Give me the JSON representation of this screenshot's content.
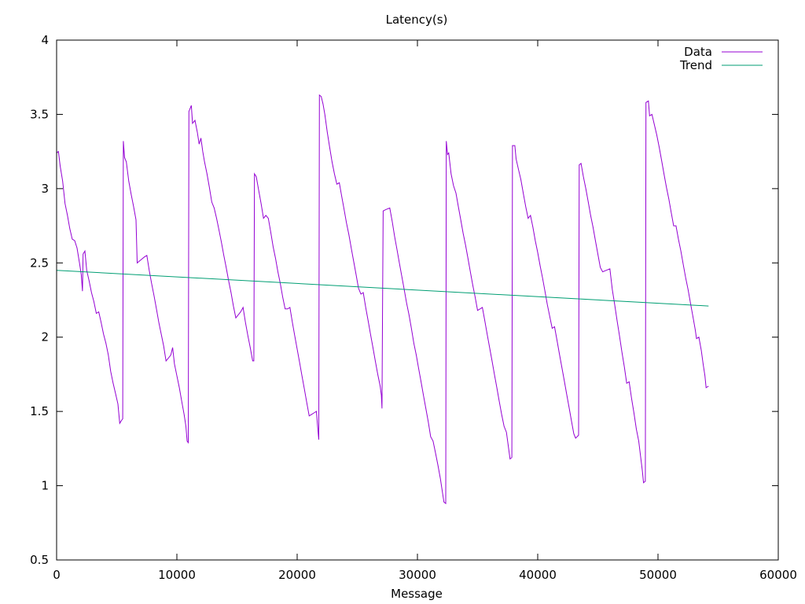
{
  "chart_data": {
    "type": "line",
    "title": "Latency(s)",
    "xlabel": "Message",
    "ylabel": "",
    "xlim": [
      0,
      60000
    ],
    "ylim": [
      0.5,
      4
    ],
    "xticks": [
      0,
      10000,
      20000,
      30000,
      40000,
      50000,
      60000
    ],
    "xtick_labels": [
      "0",
      "10000",
      "20000",
      "30000",
      "40000",
      "50000",
      "60000"
    ],
    "yticks": [
      0.5,
      1,
      1.5,
      2,
      2.5,
      3,
      3.5,
      4
    ],
    "ytick_labels": [
      "0.5",
      "1",
      "1.5",
      "2",
      "2.5",
      "3",
      "3.5",
      "4"
    ],
    "grid": false,
    "legend_position": "top-right",
    "series": [
      {
        "name": "Data",
        "color": "#9400d3",
        "points": [
          [
            0,
            3.24
          ],
          [
            150,
            3.25
          ],
          [
            300,
            3.15
          ],
          [
            500,
            3.05
          ],
          [
            700,
            2.9
          ],
          [
            900,
            2.82
          ],
          [
            1100,
            2.73
          ],
          [
            1300,
            2.66
          ],
          [
            1500,
            2.65
          ],
          [
            1700,
            2.6
          ],
          [
            1900,
            2.5
          ],
          [
            2050,
            2.42
          ],
          [
            2150,
            2.31
          ],
          [
            2200,
            2.56
          ],
          [
            2350,
            2.58
          ],
          [
            2500,
            2.45
          ],
          [
            2700,
            2.38
          ],
          [
            2900,
            2.3
          ],
          [
            3100,
            2.24
          ],
          [
            3300,
            2.16
          ],
          [
            3500,
            2.17
          ],
          [
            3700,
            2.1
          ],
          [
            3900,
            2.02
          ],
          [
            4100,
            1.96
          ],
          [
            4300,
            1.88
          ],
          [
            4500,
            1.77
          ],
          [
            4700,
            1.69
          ],
          [
            4900,
            1.62
          ],
          [
            5100,
            1.55
          ],
          [
            5250,
            1.42
          ],
          [
            5400,
            1.44
          ],
          [
            5500,
            1.45
          ],
          [
            5550,
            3.32
          ],
          [
            5650,
            3.21
          ],
          [
            5800,
            3.18
          ],
          [
            6000,
            3.05
          ],
          [
            6200,
            2.96
          ],
          [
            6400,
            2.88
          ],
          [
            6600,
            2.79
          ],
          [
            6700,
            2.5
          ],
          [
            7000,
            2.52
          ],
          [
            7300,
            2.54
          ],
          [
            7500,
            2.55
          ],
          [
            7700,
            2.45
          ],
          [
            7900,
            2.36
          ],
          [
            8100,
            2.28
          ],
          [
            8300,
            2.19
          ],
          [
            8500,
            2.1
          ],
          [
            8700,
            2.02
          ],
          [
            8900,
            1.94
          ],
          [
            9100,
            1.84
          ],
          [
            9300,
            1.86
          ],
          [
            9500,
            1.88
          ],
          [
            9650,
            1.93
          ],
          [
            9800,
            1.82
          ],
          [
            10000,
            1.74
          ],
          [
            10200,
            1.66
          ],
          [
            10400,
            1.57
          ],
          [
            10600,
            1.48
          ],
          [
            10750,
            1.4
          ],
          [
            10850,
            1.3
          ],
          [
            10950,
            1.29
          ],
          [
            11000,
            3.52
          ],
          [
            11200,
            3.56
          ],
          [
            11300,
            3.44
          ],
          [
            11500,
            3.46
          ],
          [
            11700,
            3.38
          ],
          [
            11850,
            3.3
          ],
          [
            12000,
            3.34
          ],
          [
            12150,
            3.25
          ],
          [
            12300,
            3.18
          ],
          [
            12500,
            3.1
          ],
          [
            12700,
            3.01
          ],
          [
            12900,
            2.91
          ],
          [
            13100,
            2.87
          ],
          [
            13300,
            2.8
          ],
          [
            13500,
            2.72
          ],
          [
            13700,
            2.64
          ],
          [
            13900,
            2.55
          ],
          [
            14100,
            2.47
          ],
          [
            14300,
            2.38
          ],
          [
            14500,
            2.3
          ],
          [
            14700,
            2.21
          ],
          [
            14900,
            2.13
          ],
          [
            15100,
            2.15
          ],
          [
            15300,
            2.17
          ],
          [
            15500,
            2.2
          ],
          [
            15700,
            2.1
          ],
          [
            15900,
            2.01
          ],
          [
            16100,
            1.93
          ],
          [
            16300,
            1.84
          ],
          [
            16400,
            1.84
          ],
          [
            16450,
            3.1
          ],
          [
            16600,
            3.08
          ],
          [
            16800,
            2.99
          ],
          [
            17000,
            2.9
          ],
          [
            17200,
            2.8
          ],
          [
            17400,
            2.82
          ],
          [
            17600,
            2.8
          ],
          [
            17800,
            2.71
          ],
          [
            18000,
            2.61
          ],
          [
            18200,
            2.53
          ],
          [
            18400,
            2.44
          ],
          [
            18600,
            2.36
          ],
          [
            18800,
            2.27
          ],
          [
            19000,
            2.19
          ],
          [
            19200,
            2.19
          ],
          [
            19400,
            2.2
          ],
          [
            19600,
            2.1
          ],
          [
            19800,
            2.01
          ],
          [
            20000,
            1.92
          ],
          [
            20200,
            1.83
          ],
          [
            20400,
            1.74
          ],
          [
            20600,
            1.65
          ],
          [
            20800,
            1.56
          ],
          [
            21000,
            1.47
          ],
          [
            21200,
            1.48
          ],
          [
            21400,
            1.49
          ],
          [
            21600,
            1.5
          ],
          [
            21700,
            1.4
          ],
          [
            21800,
            1.31
          ],
          [
            21850,
            3.63
          ],
          [
            22000,
            3.62
          ],
          [
            22150,
            3.57
          ],
          [
            22300,
            3.5
          ],
          [
            22500,
            3.38
          ],
          [
            22700,
            3.28
          ],
          [
            22900,
            3.18
          ],
          [
            23100,
            3.1
          ],
          [
            23300,
            3.03
          ],
          [
            23500,
            3.04
          ],
          [
            23700,
            2.95
          ],
          [
            23900,
            2.86
          ],
          [
            24100,
            2.77
          ],
          [
            24300,
            2.69
          ],
          [
            24500,
            2.6
          ],
          [
            24700,
            2.51
          ],
          [
            24900,
            2.42
          ],
          [
            25100,
            2.33
          ],
          [
            25300,
            2.29
          ],
          [
            25500,
            2.3
          ],
          [
            25700,
            2.2
          ],
          [
            25900,
            2.11
          ],
          [
            26100,
            2.02
          ],
          [
            26300,
            1.93
          ],
          [
            26500,
            1.84
          ],
          [
            26700,
            1.75
          ],
          [
            26900,
            1.67
          ],
          [
            27000,
            1.61
          ],
          [
            27050,
            1.52
          ],
          [
            27100,
            2.18
          ],
          [
            27150,
            2.85
          ],
          [
            27400,
            2.86
          ],
          [
            27700,
            2.87
          ],
          [
            27900,
            2.78
          ],
          [
            28100,
            2.68
          ],
          [
            28300,
            2.59
          ],
          [
            28500,
            2.5
          ],
          [
            28700,
            2.41
          ],
          [
            28900,
            2.32
          ],
          [
            29100,
            2.23
          ],
          [
            29300,
            2.15
          ],
          [
            29500,
            2.06
          ],
          [
            29700,
            1.96
          ],
          [
            29900,
            1.88
          ],
          [
            30100,
            1.79
          ],
          [
            30300,
            1.7
          ],
          [
            30500,
            1.61
          ],
          [
            30700,
            1.52
          ],
          [
            30900,
            1.43
          ],
          [
            31100,
            1.33
          ],
          [
            31300,
            1.3
          ],
          [
            31500,
            1.22
          ],
          [
            31700,
            1.14
          ],
          [
            31900,
            1.05
          ],
          [
            32050,
            0.97
          ],
          [
            32200,
            0.89
          ],
          [
            32350,
            0.88
          ],
          [
            32400,
            3.32
          ],
          [
            32500,
            3.23
          ],
          [
            32600,
            3.24
          ],
          [
            32800,
            3.1
          ],
          [
            33000,
            3.02
          ],
          [
            33200,
            2.97
          ],
          [
            33400,
            2.88
          ],
          [
            33600,
            2.79
          ],
          [
            33800,
            2.7
          ],
          [
            34000,
            2.62
          ],
          [
            34200,
            2.53
          ],
          [
            34400,
            2.44
          ],
          [
            34600,
            2.35
          ],
          [
            34800,
            2.27
          ],
          [
            35000,
            2.18
          ],
          [
            35200,
            2.19
          ],
          [
            35400,
            2.2
          ],
          [
            35600,
            2.11
          ],
          [
            35800,
            2.02
          ],
          [
            36000,
            1.93
          ],
          [
            36200,
            1.84
          ],
          [
            36400,
            1.75
          ],
          [
            36600,
            1.66
          ],
          [
            36800,
            1.57
          ],
          [
            37000,
            1.48
          ],
          [
            37200,
            1.4
          ],
          [
            37400,
            1.36
          ],
          [
            37550,
            1.27
          ],
          [
            37700,
            1.18
          ],
          [
            37850,
            1.19
          ],
          [
            37900,
            3.29
          ],
          [
            38100,
            3.29
          ],
          [
            38200,
            3.2
          ],
          [
            38400,
            3.13
          ],
          [
            38600,
            3.06
          ],
          [
            38800,
            2.97
          ],
          [
            39000,
            2.88
          ],
          [
            39200,
            2.8
          ],
          [
            39400,
            2.82
          ],
          [
            39600,
            2.74
          ],
          [
            39800,
            2.65
          ],
          [
            40000,
            2.57
          ],
          [
            40200,
            2.48
          ],
          [
            40400,
            2.4
          ],
          [
            40600,
            2.31
          ],
          [
            40800,
            2.22
          ],
          [
            41000,
            2.14
          ],
          [
            41200,
            2.06
          ],
          [
            41400,
            2.07
          ],
          [
            41600,
            1.98
          ],
          [
            41800,
            1.89
          ],
          [
            42000,
            1.8
          ],
          [
            42200,
            1.71
          ],
          [
            42400,
            1.62
          ],
          [
            42600,
            1.53
          ],
          [
            42800,
            1.44
          ],
          [
            43000,
            1.35
          ],
          [
            43150,
            1.32
          ],
          [
            43400,
            1.34
          ],
          [
            43450,
            3.16
          ],
          [
            43600,
            3.17
          ],
          [
            43800,
            3.08
          ],
          [
            44000,
            3.0
          ],
          [
            44200,
            2.91
          ],
          [
            44400,
            2.82
          ],
          [
            44600,
            2.74
          ],
          [
            44800,
            2.65
          ],
          [
            45000,
            2.56
          ],
          [
            45200,
            2.47
          ],
          [
            45400,
            2.44
          ],
          [
            45700,
            2.45
          ],
          [
            46000,
            2.46
          ],
          [
            46200,
            2.32
          ],
          [
            46400,
            2.22
          ],
          [
            46600,
            2.11
          ],
          [
            46800,
            2.01
          ],
          [
            47000,
            1.9
          ],
          [
            47200,
            1.8
          ],
          [
            47400,
            1.69
          ],
          [
            47600,
            1.7
          ],
          [
            47800,
            1.59
          ],
          [
            48000,
            1.49
          ],
          [
            48200,
            1.38
          ],
          [
            48400,
            1.3
          ],
          [
            48550,
            1.2
          ],
          [
            48700,
            1.1
          ],
          [
            48800,
            1.02
          ],
          [
            48950,
            1.03
          ],
          [
            49000,
            3.58
          ],
          [
            49200,
            3.59
          ],
          [
            49300,
            3.49
          ],
          [
            49500,
            3.5
          ],
          [
            49700,
            3.43
          ],
          [
            49900,
            3.36
          ],
          [
            50100,
            3.28
          ],
          [
            50300,
            3.19
          ],
          [
            50500,
            3.1
          ],
          [
            50700,
            3.01
          ],
          [
            50900,
            2.93
          ],
          [
            51100,
            2.84
          ],
          [
            51300,
            2.75
          ],
          [
            51500,
            2.75
          ],
          [
            51700,
            2.66
          ],
          [
            51900,
            2.58
          ],
          [
            52100,
            2.49
          ],
          [
            52300,
            2.4
          ],
          [
            52500,
            2.32
          ],
          [
            52700,
            2.23
          ],
          [
            52900,
            2.14
          ],
          [
            53100,
            2.05
          ],
          [
            53200,
            1.99
          ],
          [
            53400,
            2.0
          ],
          [
            53600,
            1.91
          ],
          [
            53750,
            1.82
          ],
          [
            53900,
            1.74
          ],
          [
            54000,
            1.66
          ],
          [
            54200,
            1.67
          ]
        ]
      },
      {
        "name": "Trend",
        "color": "#009e73",
        "points": [
          [
            0,
            2.45
          ],
          [
            54200,
            2.21
          ]
        ]
      }
    ]
  }
}
